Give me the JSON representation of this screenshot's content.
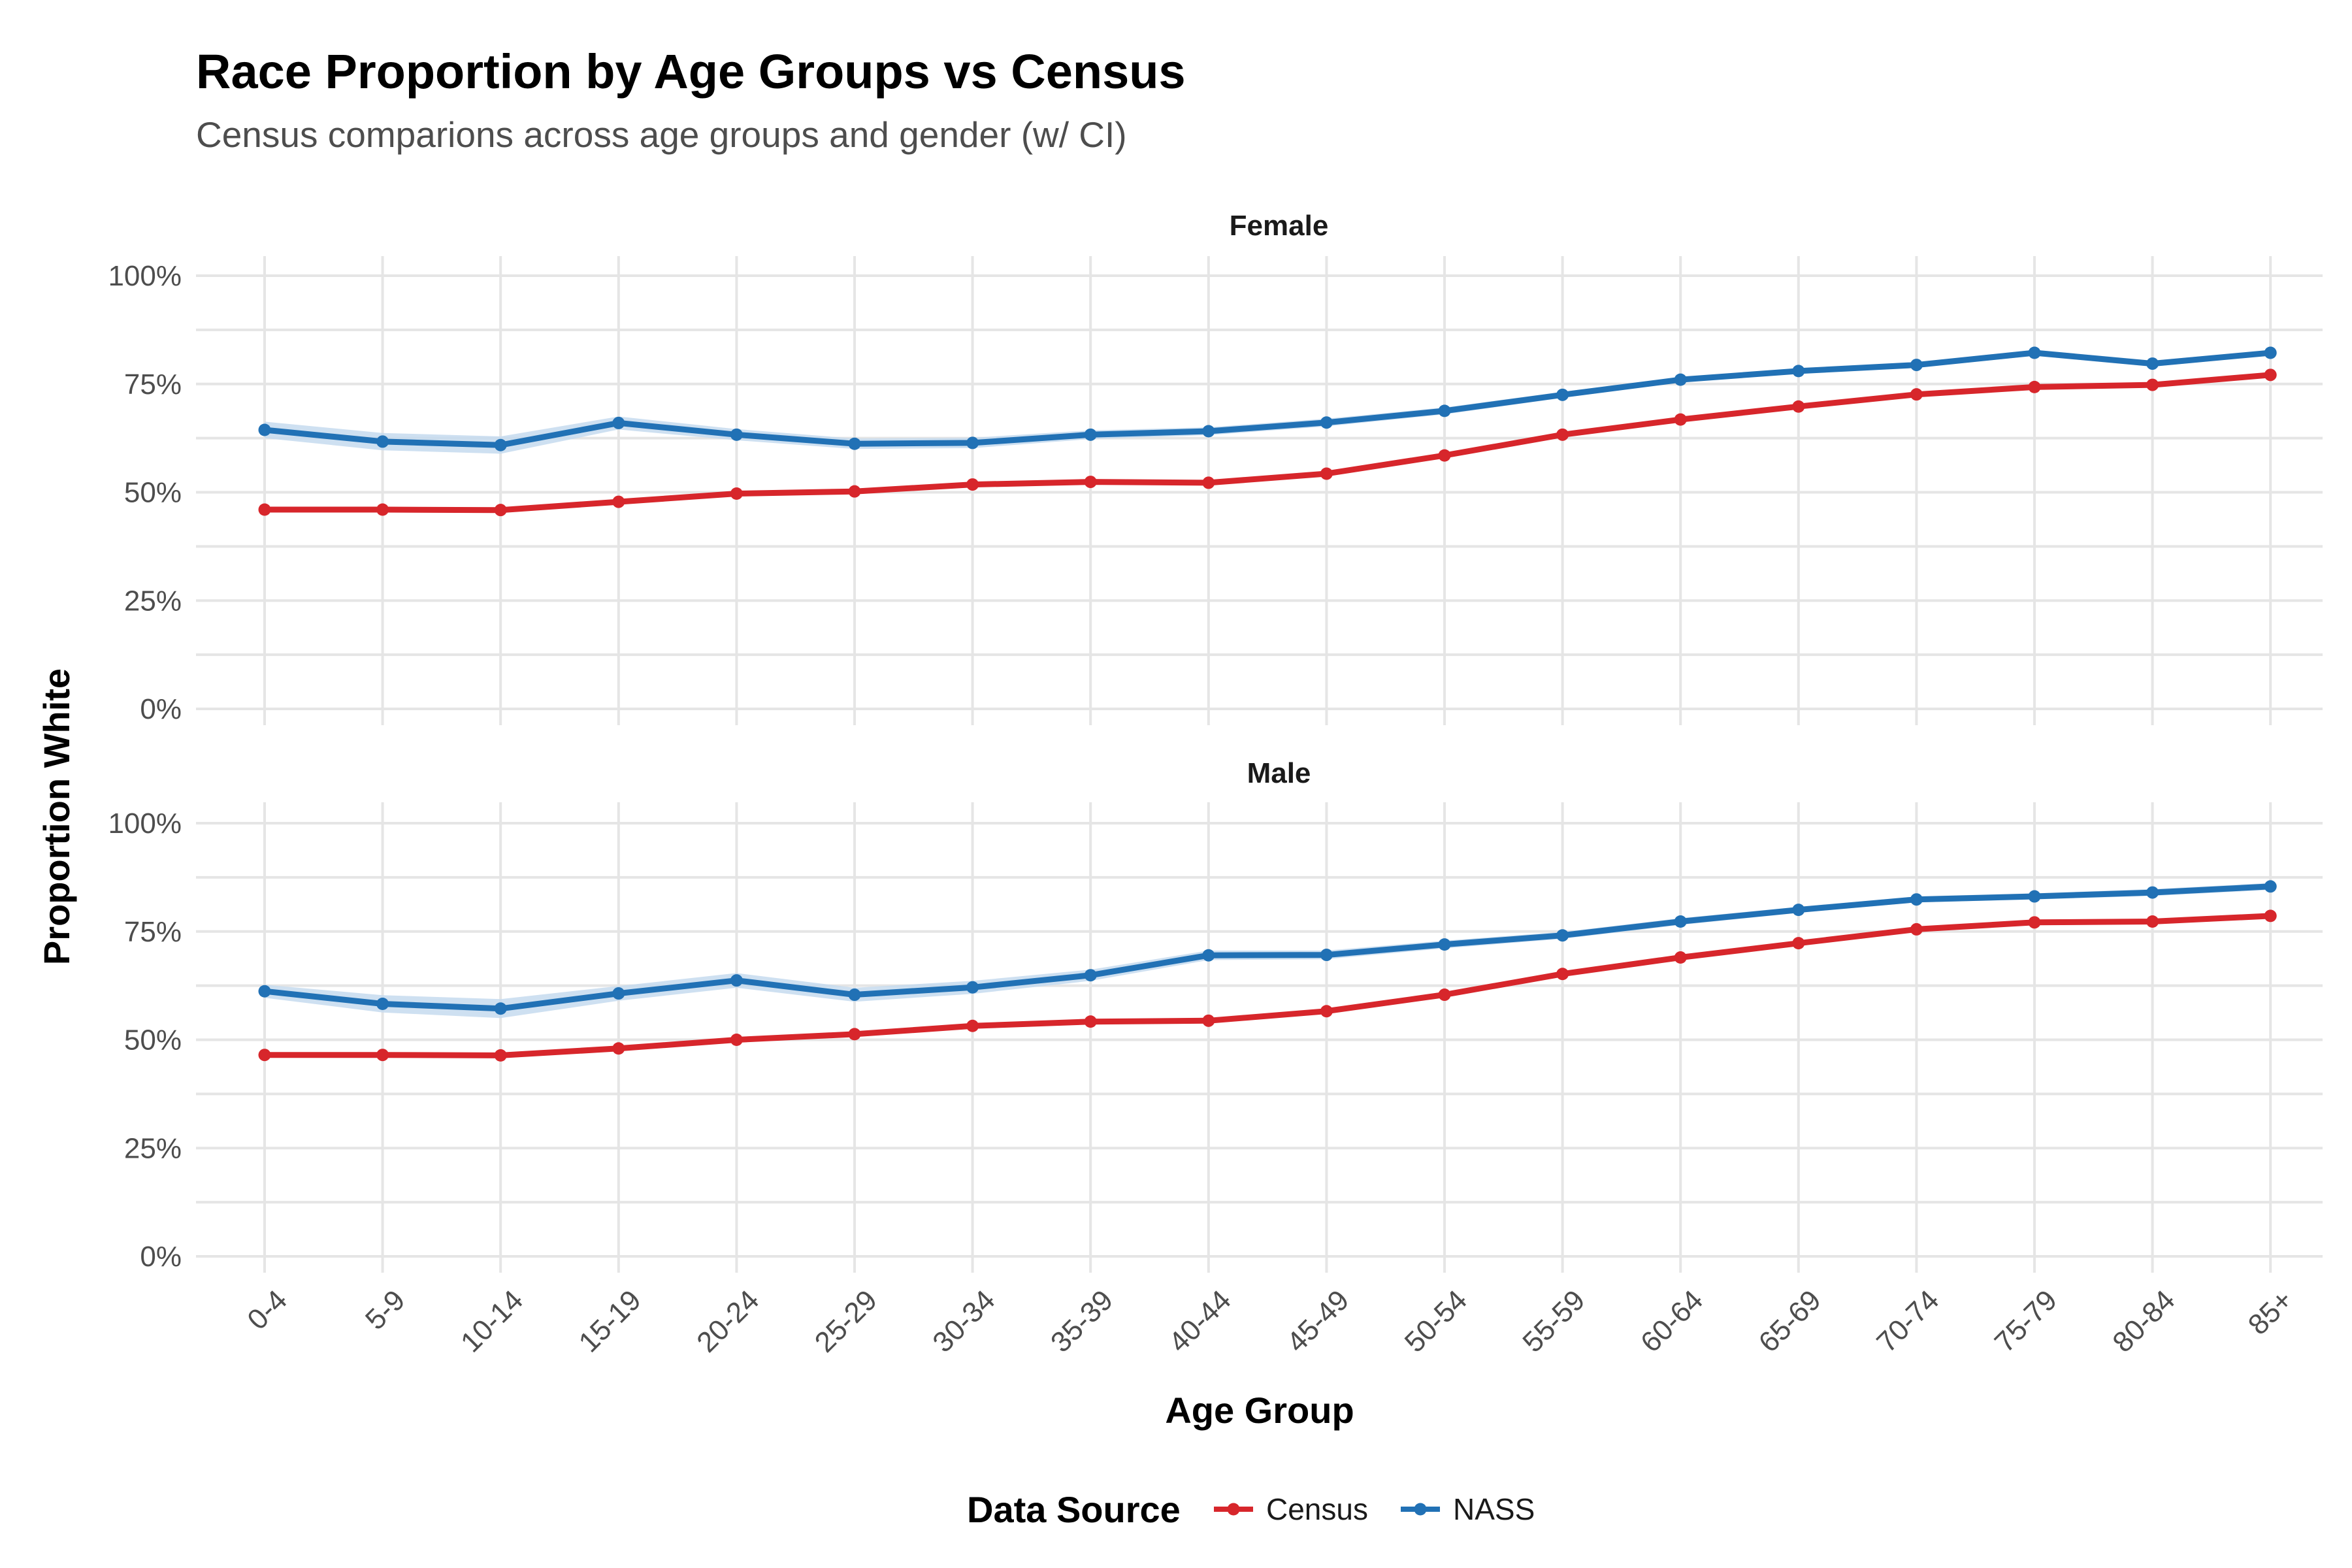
{
  "chart_data": {
    "type": "line",
    "title": "Race Proportion by Age Groups vs Census",
    "subtitle": "Census comparions across age groups and gender (w/ CI)",
    "xlabel": "Age Group",
    "ylabel": "Proportion White",
    "ylim": [
      0,
      1
    ],
    "y_ticks": [
      {
        "value": 0,
        "label": "0%"
      },
      {
        "value": 0.25,
        "label": "25%"
      },
      {
        "value": 0.5,
        "label": "50%"
      },
      {
        "value": 0.75,
        "label": "75%"
      },
      {
        "value": 1,
        "label": "100%"
      }
    ],
    "categories": [
      "0-4",
      "5-9",
      "10-14",
      "15-19",
      "20-24",
      "25-29",
      "30-34",
      "35-39",
      "40-44",
      "45-49",
      "50-54",
      "55-59",
      "60-64",
      "65-69",
      "70-74",
      "75-79",
      "80-84",
      "85+"
    ],
    "grid": true,
    "legend": {
      "title": "Data Source",
      "position": "bottom",
      "items": [
        {
          "name": "Census",
          "color": "#d7262b"
        },
        {
          "name": "NASS",
          "color": "#2171b5"
        }
      ]
    },
    "ci_color": "#c6dbef",
    "panels": [
      {
        "label": "Female",
        "series": [
          {
            "name": "Census",
            "color": "#d7262b",
            "values": [
              0.46,
              0.46,
              0.459,
              0.478,
              0.497,
              0.502,
              0.518,
              0.524,
              0.522,
              0.543,
              0.585,
              0.633,
              0.668,
              0.698,
              0.726,
              0.743,
              0.748,
              0.771
            ]
          },
          {
            "name": "NASS",
            "color": "#2171b5",
            "values": [
              0.644,
              0.617,
              0.609,
              0.66,
              0.633,
              0.612,
              0.614,
              0.633,
              0.641,
              0.661,
              0.688,
              0.725,
              0.76,
              0.78,
              0.794,
              0.822,
              0.797,
              0.822
            ],
            "ci_lower": [
              0.625,
              0.597,
              0.589,
              0.645,
              0.62,
              0.6,
              0.602,
              0.623,
              0.632,
              0.652,
              0.68,
              0.718,
              0.754,
              0.774,
              0.788,
              0.815,
              0.79,
              0.816
            ],
            "ci_upper": [
              0.663,
              0.637,
              0.629,
              0.675,
              0.646,
              0.624,
              0.626,
              0.643,
              0.65,
              0.67,
              0.696,
              0.732,
              0.766,
              0.786,
              0.8,
              0.829,
              0.804,
              0.828
            ]
          }
        ]
      },
      {
        "label": "Male",
        "series": [
          {
            "name": "Census",
            "color": "#d7262b",
            "values": [
              0.465,
              0.465,
              0.464,
              0.48,
              0.5,
              0.513,
              0.532,
              0.542,
              0.544,
              0.566,
              0.604,
              0.652,
              0.69,
              0.723,
              0.755,
              0.771,
              0.773,
              0.786
            ]
          },
          {
            "name": "NASS",
            "color": "#2171b5",
            "values": [
              0.612,
              0.583,
              0.572,
              0.607,
              0.637,
              0.604,
              0.621,
              0.649,
              0.695,
              0.696,
              0.72,
              0.741,
              0.773,
              0.8,
              0.824,
              0.831,
              0.84,
              0.854
            ],
            "ci_lower": [
              0.597,
              0.563,
              0.55,
              0.59,
              0.62,
              0.588,
              0.606,
              0.636,
              0.684,
              0.686,
              0.711,
              0.733,
              0.765,
              0.793,
              0.817,
              0.824,
              0.832,
              0.846
            ],
            "ci_upper": [
              0.627,
              0.603,
              0.594,
              0.624,
              0.654,
              0.62,
              0.636,
              0.662,
              0.706,
              0.706,
              0.729,
              0.749,
              0.781,
              0.807,
              0.831,
              0.838,
              0.848,
              0.862
            ]
          }
        ]
      }
    ]
  }
}
